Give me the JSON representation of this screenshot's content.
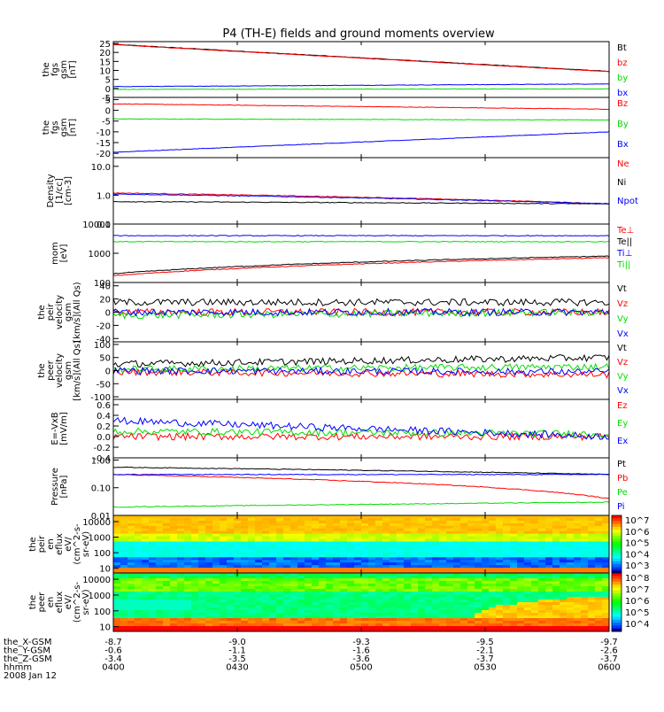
{
  "title": "P4 (TH-E) fields and ground moments overview",
  "footer": {
    "rows": [
      {
        "label": "the_X-GSM",
        "values": [
          "-8.7",
          "-9.0",
          "-9.3",
          "-9.5",
          "-9.7"
        ]
      },
      {
        "label": "the_Y-GSM",
        "values": [
          "-0.6",
          "-1.1",
          "-1.6",
          "-2.1",
          "-2.6"
        ]
      },
      {
        "label": "the_Z-GSM",
        "values": [
          "-3.4",
          "-3.5",
          "-3.6",
          "-3.7",
          "-3.7"
        ]
      },
      {
        "label": "hhmm",
        "values": [
          "0400",
          "0430",
          "0500",
          "0530",
          "0600"
        ]
      }
    ],
    "date": "2008 Jan 12"
  },
  "colors": {
    "black": "#000000",
    "red": "#ff0000",
    "green": "#00dd00",
    "blue": "#0000ff"
  },
  "chart_data": [
    {
      "type": "line",
      "ylabel": [
        "the",
        "fgs",
        "gsm",
        "[nT]"
      ],
      "yscale": "linear",
      "ylim": [
        -5,
        26
      ],
      "ticks": [
        "25",
        "20",
        "15",
        "10",
        "5",
        "0",
        "-5"
      ],
      "x_range": [
        "0400",
        "0600"
      ],
      "series": [
        {
          "name": "Bt",
          "color": "black",
          "start": 24.5,
          "end": 9.5
        },
        {
          "name": "bz",
          "color": "red",
          "start": 24.3,
          "end": 9.3
        },
        {
          "name": "by",
          "color": "green",
          "start": -0.5,
          "end": -0.3
        },
        {
          "name": "bx",
          "color": "blue",
          "start": 1.0,
          "end": 2.5
        }
      ]
    },
    {
      "type": "line",
      "ylabel": [
        "the",
        "fgs",
        "gsm",
        "[nT]"
      ],
      "yscale": "linear",
      "ylim": [
        -22,
        6
      ],
      "ticks": [
        "5",
        "0",
        "-5",
        "-10",
        "-15",
        "-20"
      ],
      "x_range": [
        "0400",
        "0600"
      ],
      "series": [
        {
          "name": "Bz",
          "color": "red",
          "start": 3.0,
          "end": 0.5
        },
        {
          "name": "By",
          "color": "green",
          "start": -4.0,
          "end": -4.5
        },
        {
          "name": "Bx",
          "color": "blue",
          "start": -19.5,
          "end": -10.0
        }
      ]
    },
    {
      "type": "line",
      "ylabel": [
        "Density",
        "[1/cc]",
        "[cm-3]"
      ],
      "yscale": "log",
      "ylim": [
        0.1,
        20
      ],
      "ticks": [
        "10.0",
        "1.0",
        "0.1"
      ],
      "x_range": [
        "0400",
        "0600"
      ],
      "series": [
        {
          "name": "Ne",
          "color": "red",
          "start": 1.2,
          "end": 0.5
        },
        {
          "name": "Ni",
          "color": "black",
          "start": 0.6,
          "end": 0.5
        },
        {
          "name": "Npot",
          "color": "blue",
          "start": 1.1,
          "end": 0.5
        }
      ]
    },
    {
      "type": "line",
      "ylabel": [
        "mom",
        "[eV]"
      ],
      "yscale": "log",
      "ylim": [
        100,
        10000
      ],
      "ticks": [
        "10000",
        "1000",
        "100"
      ],
      "x_range": [
        "0400",
        "0600"
      ],
      "series": [
        {
          "name": "Te⊥",
          "color": "red",
          "start": 170,
          "end": 700
        },
        {
          "name": "Te||",
          "color": "black",
          "start": 200,
          "end": 800
        },
        {
          "name": "Ti⊥",
          "color": "blue",
          "start": 4000,
          "end": 4000
        },
        {
          "name": "Ti||",
          "color": "green",
          "start": 2500,
          "end": 2500
        }
      ]
    },
    {
      "type": "line",
      "ylabel": [
        "the",
        "peir",
        "velocity",
        "gsm",
        "[km/s](All Qs)"
      ],
      "yscale": "linear",
      "ylim": [
        -45,
        45
      ],
      "ticks": [
        "40",
        "20",
        "0",
        "-20",
        "-40"
      ],
      "x_range": [
        "0400",
        "0600"
      ],
      "series": [
        {
          "name": "Vt",
          "color": "black",
          "start": 15,
          "end": 15
        },
        {
          "name": "Vz",
          "color": "red",
          "start": 0,
          "end": 0
        },
        {
          "name": "Vy",
          "color": "green",
          "start": -5,
          "end": 0
        },
        {
          "name": "Vx",
          "color": "blue",
          "start": 0,
          "end": 0
        }
      ]
    },
    {
      "type": "line",
      "ylabel": [
        "the",
        "peer",
        "velocity",
        "gsm",
        "[km/s](All Qs)"
      ],
      "yscale": "linear",
      "ylim": [
        -110,
        110
      ],
      "ticks": [
        "100",
        "50",
        "0",
        "-50",
        "-100"
      ],
      "x_range": [
        "0400",
        "0600"
      ],
      "series": [
        {
          "name": "Vt",
          "color": "black",
          "start": 25,
          "end": 50
        },
        {
          "name": "Vz",
          "color": "red",
          "start": -5,
          "end": -15
        },
        {
          "name": "Vy",
          "color": "green",
          "start": 5,
          "end": 15
        },
        {
          "name": "Vx",
          "color": "blue",
          "start": 0,
          "end": -5
        }
      ]
    },
    {
      "type": "line",
      "ylabel": [
        "E=-VxB",
        "[mV/m]"
      ],
      "yscale": "linear",
      "ylim": [
        -0.4,
        0.7
      ],
      "ticks": [
        "0.6",
        "0.4",
        "0.2",
        "0.0",
        "-0.2",
        "-0.4"
      ],
      "x_range": [
        "0400",
        "0600"
      ],
      "series": [
        {
          "name": "Ez",
          "color": "red",
          "start": 0.0,
          "end": 0.0
        },
        {
          "name": "Ey",
          "color": "green",
          "start": 0.1,
          "end": 0.05
        },
        {
          "name": "Ex",
          "color": "blue",
          "start": 0.3,
          "end": 0.0
        }
      ]
    },
    {
      "type": "line",
      "ylabel": [
        "Pressure",
        "[nPa]"
      ],
      "yscale": "log",
      "ylim": [
        0.01,
        1.2
      ],
      "ticks": [
        "1.00",
        "0.10",
        "0.01"
      ],
      "x_range": [
        "0400",
        "0600"
      ],
      "series": [
        {
          "name": "Pt",
          "color": "black",
          "start": 0.55,
          "end": 0.3
        },
        {
          "name": "Pb",
          "color": "red",
          "start": 0.3,
          "end": 0.04
        },
        {
          "name": "Pe",
          "color": "green",
          "start": 0.02,
          "end": 0.03
        },
        {
          "name": "Pi",
          "color": "blue",
          "start": 0.3,
          "end": 0.3
        }
      ]
    },
    {
      "type": "heatmap",
      "ylabel": [
        "the",
        "peir",
        "en",
        "eflux",
        "eV/",
        "(cm^2-s-",
        "sr-eV)"
      ],
      "yscale": "log",
      "ylim": [
        5,
        25000
      ],
      "ticks": [
        "10000",
        "1000",
        "100",
        "10"
      ],
      "x_range": [
        "0400",
        "0600"
      ],
      "colorbar": [
        "10^7",
        "10^6",
        "10^5",
        "10^4",
        "10^3"
      ]
    },
    {
      "type": "heatmap",
      "ylabel": [
        "the",
        "peer",
        "en",
        "eflux",
        "eV/",
        "(cm^2-s-",
        "sr-eV)"
      ],
      "yscale": "log",
      "ylim": [
        5,
        25000
      ],
      "ticks": [
        "10000",
        "1000",
        "100",
        "10"
      ],
      "x_range": [
        "0400",
        "0600"
      ],
      "colorbar": [
        "10^8",
        "10^7",
        "10^6",
        "10^5",
        "10^4"
      ]
    }
  ]
}
